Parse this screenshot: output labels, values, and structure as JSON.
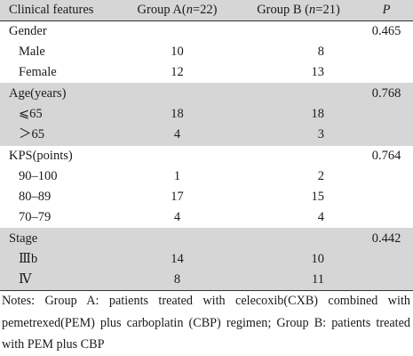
{
  "table": {
    "headers": {
      "feature": "Clinical features",
      "group_a": "Group A(n=22)",
      "group_b": "Group B (n=21)",
      "p": "P"
    },
    "rows": [
      {
        "label": "Gender",
        "a": "",
        "b": "",
        "p": "0.465",
        "kind": "section",
        "shade": false
      },
      {
        "label": "Male",
        "a": "10",
        "b": "8",
        "p": "",
        "kind": "sub",
        "shade": false
      },
      {
        "label": "Female",
        "a": "12",
        "b": "13",
        "p": "",
        "kind": "sub",
        "shade": false
      },
      {
        "label": "Age(years)",
        "a": "",
        "b": "",
        "p": "0.768",
        "kind": "section",
        "shade": true
      },
      {
        "label": "⩽65",
        "a": "18",
        "b": "18",
        "p": "",
        "kind": "sub",
        "shade": true
      },
      {
        "label": "＞65",
        "a": "4",
        "b": "3",
        "p": "",
        "kind": "sub",
        "shade": true
      },
      {
        "label": "KPS(points)",
        "a": "",
        "b": "",
        "p": "0.764",
        "kind": "section",
        "shade": false
      },
      {
        "label": "90–100",
        "a": "1",
        "b": "2",
        "p": "",
        "kind": "sub",
        "shade": false
      },
      {
        "label": "80–89",
        "a": "17",
        "b": "15",
        "p": "",
        "kind": "sub",
        "shade": false
      },
      {
        "label": "70–79",
        "a": "4",
        "b": "4",
        "p": "",
        "kind": "sub",
        "shade": false
      },
      {
        "label": "Stage",
        "a": "",
        "b": "",
        "p": "0.442",
        "kind": "section",
        "shade": true
      },
      {
        "label": "Ⅲb",
        "a": "14",
        "b": "10",
        "p": "",
        "kind": "sub",
        "shade": true
      },
      {
        "label": "Ⅳ",
        "a": "8",
        "b": "11",
        "p": "",
        "kind": "sub",
        "shade": true
      }
    ]
  },
  "notes": "Notes: Group A: patients treated with celecoxib(CXB) combined with pemetrexed(PEM) plus carboplatin (CBP) regimen; Group B: patients treated with PEM plus CBP"
}
